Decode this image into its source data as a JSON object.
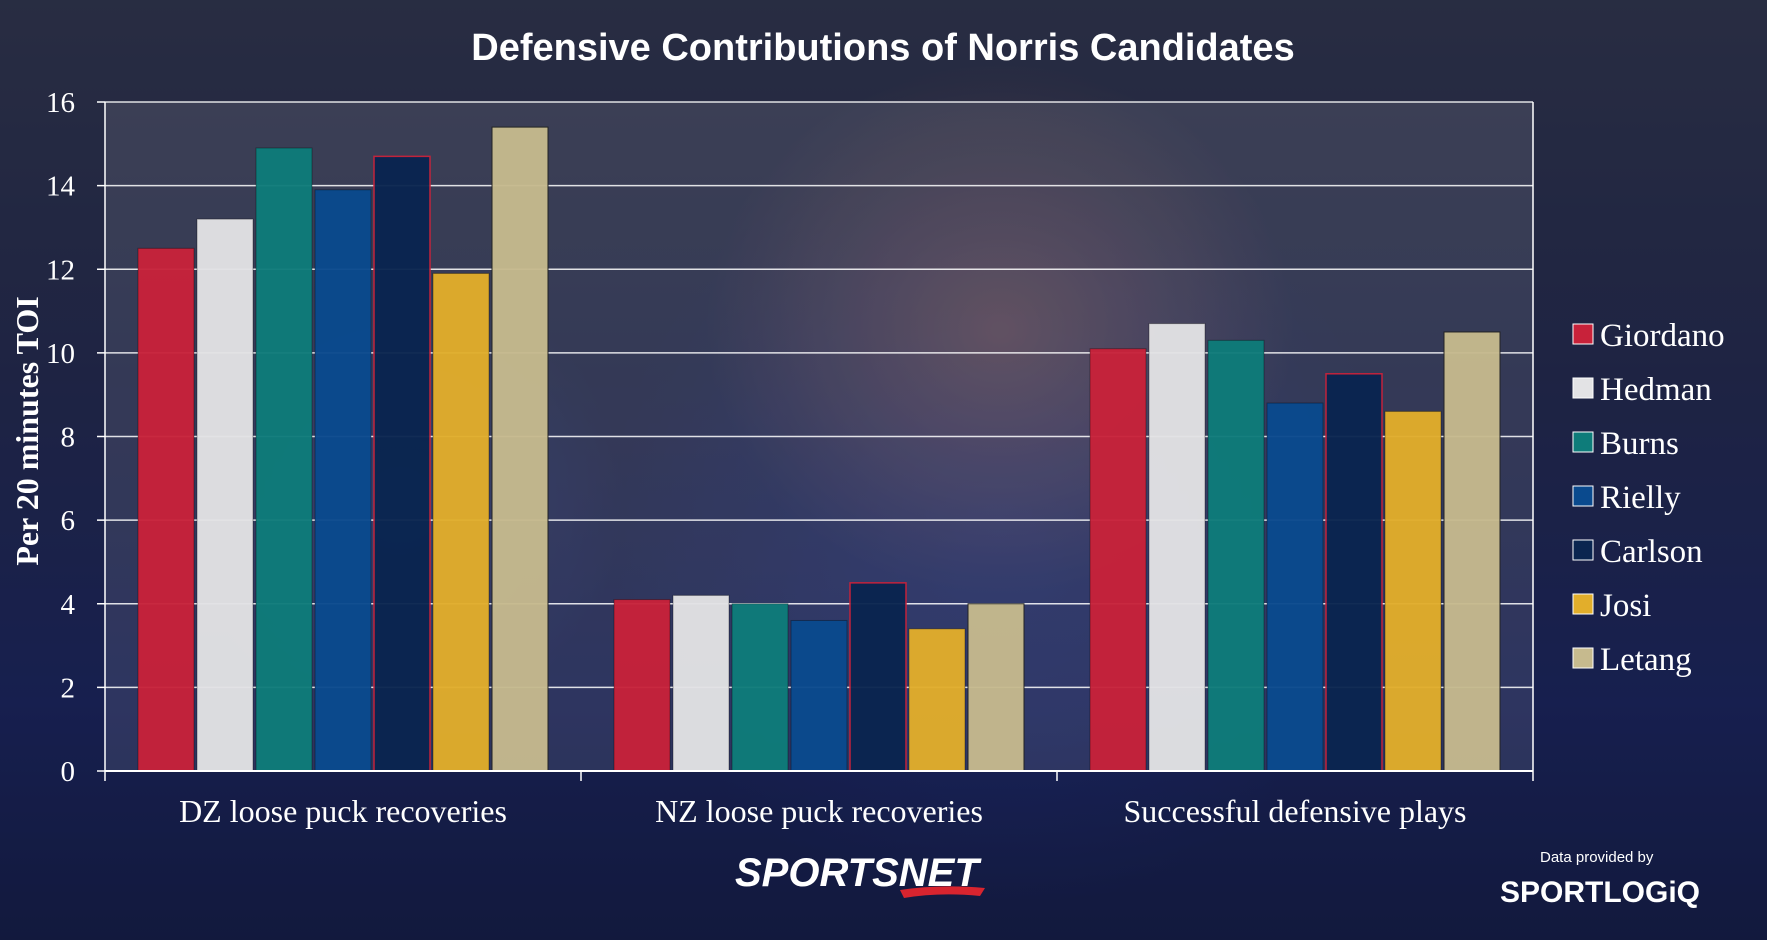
{
  "chart_data": {
    "type": "bar",
    "title": "Defensive Contributions of Norris Candidates",
    "ylabel": "Per 20 minutes TOI",
    "ylim": [
      0,
      16
    ],
    "yticks": [
      0,
      2,
      4,
      6,
      8,
      10,
      12,
      14,
      16
    ],
    "grid": true,
    "legend_position": "right",
    "categories": [
      "DZ loose puck recoveries",
      "NZ loose puck recoveries",
      "Successful defensive plays"
    ],
    "series": [
      {
        "name": "Giordano",
        "color": "#c8223a",
        "values": [
          12.5,
          4.1,
          10.1
        ]
      },
      {
        "name": "Hedman",
        "color": "#e3e3e5",
        "values": [
          13.2,
          4.2,
          10.7
        ]
      },
      {
        "name": "Burns",
        "color": "#0e7c7a",
        "values": [
          14.9,
          4.0,
          10.3
        ]
      },
      {
        "name": "Rielly",
        "color": "#0a4a8e",
        "values": [
          13.9,
          3.6,
          8.8
        ]
      },
      {
        "name": "Carlson",
        "color": "#0a2550",
        "values": [
          14.7,
          4.5,
          9.5
        ]
      },
      {
        "name": "Josi",
        "color": "#e2ae2b",
        "values": [
          11.9,
          3.4,
          8.6
        ]
      },
      {
        "name": "Letang",
        "color": "#c6ba8e",
        "values": [
          15.4,
          4.0,
          10.5
        ]
      }
    ]
  },
  "branding": {
    "network": "SPORTSNET",
    "credit_label": "Data provided by",
    "provider": "SPORTLOGiQ"
  }
}
